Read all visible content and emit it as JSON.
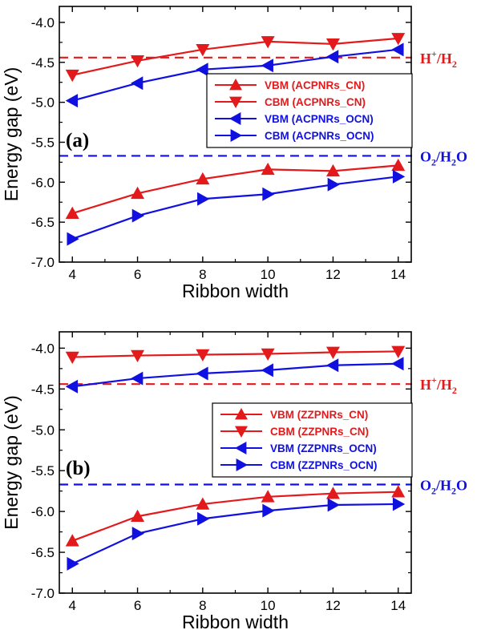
{
  "colors": {
    "red": "#e31a1c",
    "blue": "#1010e0",
    "axis": "#000000"
  },
  "chart_data": [
    {
      "type": "line",
      "panel_label": "(a)",
      "xlabel": "Ribbon width",
      "ylabel": "Energy gap (eV)",
      "xlim": [
        3.6,
        14.4
      ],
      "ylim": [
        -7.0,
        -3.8
      ],
      "x_ticks": [
        "4",
        "6",
        "8",
        "10",
        "12",
        "14"
      ],
      "y_ticks": [
        "-7.0",
        "-6.5",
        "-6.0",
        "-5.5",
        "-5.0",
        "-4.5",
        "-4.0"
      ],
      "x": [
        4,
        6,
        8,
        10,
        12,
        14
      ],
      "legend_position": "center-right",
      "series": [
        {
          "name": "VBM (ACPNRs_CN)",
          "color": "red",
          "marker": "triangle-up",
          "values": [
            -6.39,
            -6.14,
            -5.96,
            -5.84,
            -5.86,
            -5.79
          ]
        },
        {
          "name": "CBM (ACPNRs_CN)",
          "color": "red",
          "marker": "triangle-down",
          "values": [
            -4.66,
            -4.48,
            -4.34,
            -4.24,
            -4.27,
            -4.2
          ]
        },
        {
          "name": "VBM (ACPNRs_OCN)",
          "color": "blue",
          "marker": "triangle-left",
          "values": [
            -4.98,
            -4.76,
            -4.59,
            -4.54,
            -4.43,
            -4.34
          ]
        },
        {
          "name": "CBM (ACPNRs_OCN)",
          "color": "blue",
          "marker": "triangle-right",
          "values": [
            -6.71,
            -6.42,
            -6.21,
            -6.15,
            -6.03,
            -5.93
          ]
        }
      ],
      "reference_lines": [
        {
          "label_main": "H",
          "label_sup": "+",
          "label_rest": "/H",
          "label_sub": "2",
          "value": -4.44,
          "color": "red"
        },
        {
          "label_main": "O",
          "label_sub": "2",
          "label_rest": "/H",
          "label_sub2": "2",
          "label_tail": "O",
          "value": -5.67,
          "color": "blue"
        }
      ]
    },
    {
      "type": "line",
      "panel_label": "(b)",
      "xlabel": "Ribbon width",
      "ylabel": "Energy gap (eV)",
      "xlim": [
        3.6,
        14.4
      ],
      "ylim": [
        -7.0,
        -3.8
      ],
      "x_ticks": [
        "4",
        "6",
        "8",
        "10",
        "12",
        "14"
      ],
      "y_ticks": [
        "-7.0",
        "-6.5",
        "-6.0",
        "-5.5",
        "-5.0",
        "-4.5",
        "-4.0"
      ],
      "x": [
        4,
        6,
        8,
        10,
        12,
        14
      ],
      "legend_position": "center-right",
      "series": [
        {
          "name": "VBM (ZZPNRs_CN)",
          "color": "red",
          "marker": "triangle-up",
          "values": [
            -6.36,
            -6.06,
            -5.91,
            -5.82,
            -5.78,
            -5.76
          ]
        },
        {
          "name": "CBM (ZZPNRs_CN)",
          "color": "red",
          "marker": "triangle-down",
          "values": [
            -4.11,
            -4.09,
            -4.08,
            -4.07,
            -4.05,
            -4.04
          ]
        },
        {
          "name": "VBM (ZZPNRs_OCN)",
          "color": "blue",
          "marker": "triangle-left",
          "values": [
            -4.47,
            -4.37,
            -4.31,
            -4.27,
            -4.21,
            -4.19
          ]
        },
        {
          "name": "CBM (ZZPNRs_OCN)",
          "color": "blue",
          "marker": "triangle-right",
          "values": [
            -6.64,
            -6.27,
            -6.09,
            -5.99,
            -5.92,
            -5.91
          ]
        }
      ],
      "reference_lines": [
        {
          "label_main": "H",
          "label_sup": "+",
          "label_rest": "/H",
          "label_sub": "2",
          "value": -4.44,
          "color": "red"
        },
        {
          "label_main": "O",
          "label_sub": "2",
          "label_rest": "/H",
          "label_sub2": "2",
          "label_tail": "O",
          "value": -5.67,
          "color": "blue"
        }
      ]
    }
  ]
}
